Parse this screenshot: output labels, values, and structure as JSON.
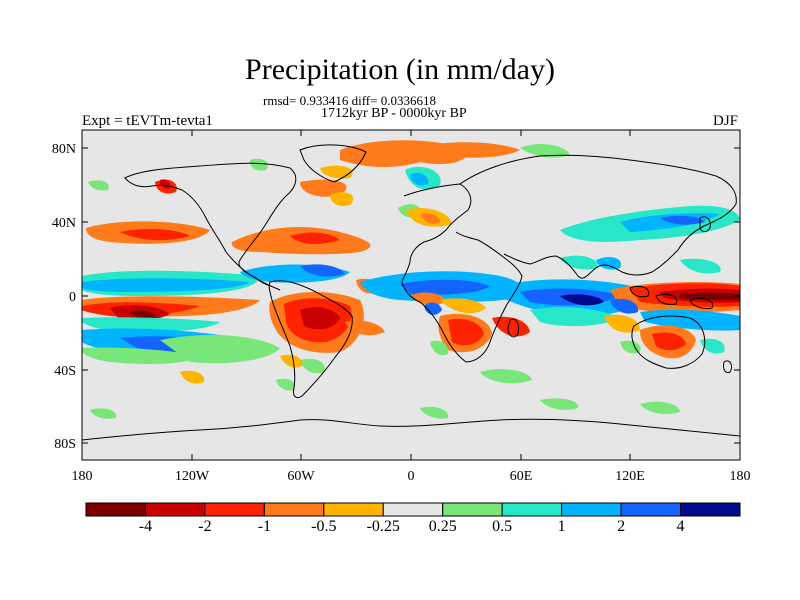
{
  "header": {
    "title": "Precipitation (in mm/day)",
    "stats": "rmsd= 0.933416 diff= 0.0336618",
    "period": "1712kyr BP - 0000kyr BP",
    "experiment": "Expt = tEVTm-tevta1",
    "season": "DJF"
  },
  "axes": {
    "lat_labels": [
      "80N",
      "40N",
      "0",
      "40S",
      "80S"
    ],
    "lon_labels": [
      "180",
      "120W",
      "60W",
      "0",
      "60E",
      "120E",
      "180"
    ]
  },
  "colorbar": {
    "colors": [
      "#7a0000",
      "#c80000",
      "#ff2200",
      "#ff7a1a",
      "#ffb400",
      "#e6e6e6",
      "#78e678",
      "#28e6c8",
      "#00b4ff",
      "#1464ff",
      "#000a8c"
    ],
    "labels": [
      "-4",
      "-2",
      "-1",
      "-0.5",
      "-0.25",
      "0.25",
      "0.5",
      "1",
      "2",
      "4"
    ]
  },
  "colors": {
    "ocean_background": "#e6e6e6",
    "coastline": "#000000"
  }
}
